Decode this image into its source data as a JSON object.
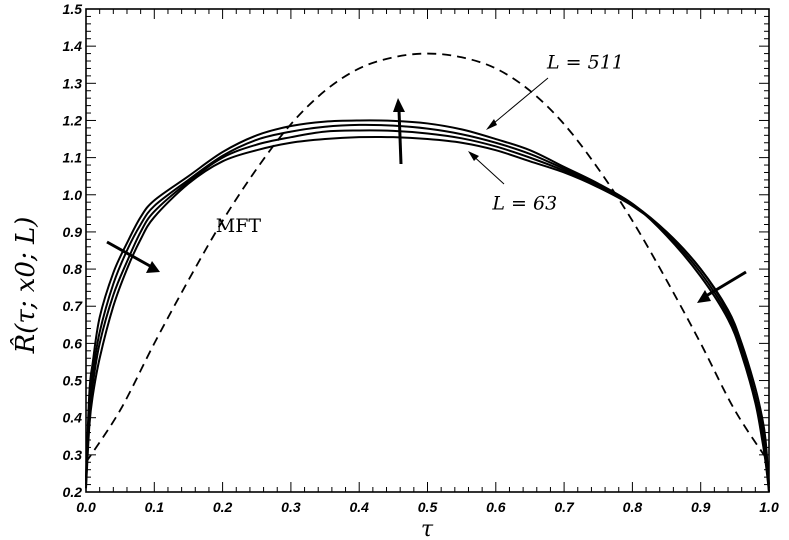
{
  "chart_data": {
    "type": "line",
    "xlabel": "τ",
    "ylabel": "R̂(τ; x0; L)",
    "xlim": [
      0.0,
      1.0
    ],
    "ylim": [
      0.2,
      1.5
    ],
    "x_ticks": [
      "0.0",
      "0.1",
      "0.2",
      "0.3",
      "0.4",
      "0.5",
      "0.6",
      "0.7",
      "0.8",
      "0.9",
      "1.0"
    ],
    "y_ticks": [
      "0.2",
      "0.3",
      "0.4",
      "0.5",
      "0.6",
      "0.7",
      "0.8",
      "0.9",
      "1.0",
      "1.1",
      "1.2",
      "1.3",
      "1.4",
      "1.5"
    ],
    "series": [
      {
        "name": "MFT",
        "style": "dashed",
        "x": [
          0.0,
          0.05,
          0.1,
          0.15,
          0.2,
          0.25,
          0.3,
          0.35,
          0.4,
          0.45,
          0.5,
          0.55,
          0.6,
          0.65,
          0.7,
          0.75,
          0.8,
          0.85,
          0.9,
          0.95,
          1.0
        ],
        "y": [
          0.28,
          0.42,
          0.6,
          0.77,
          0.93,
          1.07,
          1.19,
          1.28,
          1.34,
          1.37,
          1.38,
          1.37,
          1.34,
          1.28,
          1.19,
          1.07,
          0.93,
          0.77,
          0.6,
          0.42,
          0.28
        ]
      },
      {
        "name": "L = 63",
        "style": "solid",
        "x": [
          0.0,
          0.005,
          0.01,
          0.02,
          0.04,
          0.06,
          0.08,
          0.1,
          0.15,
          0.2,
          0.25,
          0.3,
          0.35,
          0.4,
          0.45,
          0.5,
          0.55,
          0.6,
          0.65,
          0.7,
          0.75,
          0.8,
          0.85,
          0.9,
          0.94,
          0.96,
          0.98,
          0.99,
          0.995,
          1.0
        ],
        "y": [
          0.21,
          0.38,
          0.46,
          0.56,
          0.7,
          0.8,
          0.88,
          0.94,
          1.03,
          1.09,
          1.12,
          1.14,
          1.15,
          1.155,
          1.155,
          1.15,
          1.14,
          1.12,
          1.09,
          1.06,
          1.02,
          0.97,
          0.9,
          0.8,
          0.69,
          0.6,
          0.48,
          0.4,
          0.34,
          0.22
        ]
      },
      {
        "name": "",
        "style": "solid",
        "x": [
          0.0,
          0.005,
          0.01,
          0.02,
          0.04,
          0.06,
          0.08,
          0.1,
          0.15,
          0.2,
          0.25,
          0.3,
          0.35,
          0.4,
          0.45,
          0.5,
          0.55,
          0.6,
          0.65,
          0.7,
          0.75,
          0.8,
          0.85,
          0.9,
          0.94,
          0.96,
          0.98,
          0.99,
          0.995,
          1.0
        ],
        "y": [
          0.22,
          0.41,
          0.49,
          0.6,
          0.73,
          0.82,
          0.9,
          0.955,
          1.035,
          1.1,
          1.135,
          1.155,
          1.17,
          1.173,
          1.172,
          1.165,
          1.152,
          1.13,
          1.1,
          1.065,
          1.025,
          0.975,
          0.9,
          0.8,
          0.685,
          0.59,
          0.46,
          0.38,
          0.32,
          0.21
        ]
      },
      {
        "name": "",
        "style": "solid",
        "x": [
          0.0,
          0.005,
          0.01,
          0.02,
          0.04,
          0.06,
          0.08,
          0.1,
          0.15,
          0.2,
          0.25,
          0.3,
          0.35,
          0.4,
          0.45,
          0.5,
          0.55,
          0.6,
          0.65,
          0.7,
          0.75,
          0.8,
          0.85,
          0.9,
          0.94,
          0.96,
          0.98,
          0.99,
          0.995,
          1.0
        ],
        "y": [
          0.23,
          0.44,
          0.52,
          0.63,
          0.76,
          0.85,
          0.92,
          0.97,
          1.04,
          1.105,
          1.148,
          1.17,
          1.183,
          1.188,
          1.186,
          1.178,
          1.163,
          1.14,
          1.11,
          1.07,
          1.028,
          0.976,
          0.895,
          0.79,
          0.675,
          0.58,
          0.45,
          0.36,
          0.3,
          0.2
        ]
      },
      {
        "name": "L = 511",
        "style": "solid",
        "x": [
          0.0,
          0.005,
          0.01,
          0.02,
          0.04,
          0.06,
          0.08,
          0.1,
          0.15,
          0.2,
          0.25,
          0.3,
          0.35,
          0.4,
          0.45,
          0.5,
          0.55,
          0.6,
          0.65,
          0.7,
          0.75,
          0.8,
          0.85,
          0.9,
          0.94,
          0.96,
          0.98,
          0.99,
          0.995,
          1.0
        ],
        "y": [
          0.24,
          0.47,
          0.55,
          0.67,
          0.79,
          0.87,
          0.94,
          0.985,
          1.05,
          1.115,
          1.16,
          1.185,
          1.197,
          1.2,
          1.199,
          1.192,
          1.176,
          1.15,
          1.12,
          1.075,
          1.03,
          0.975,
          0.89,
          0.78,
          0.665,
          0.57,
          0.44,
          0.34,
          0.28,
          0.2
        ]
      }
    ],
    "annotations": [
      {
        "text": "MFT",
        "x": 0.19,
        "y": 0.9
      },
      {
        "text": "L = 511",
        "x": 0.675,
        "y": 1.34
      },
      {
        "text": "L = 63",
        "x": 0.595,
        "y": 0.96
      }
    ]
  }
}
